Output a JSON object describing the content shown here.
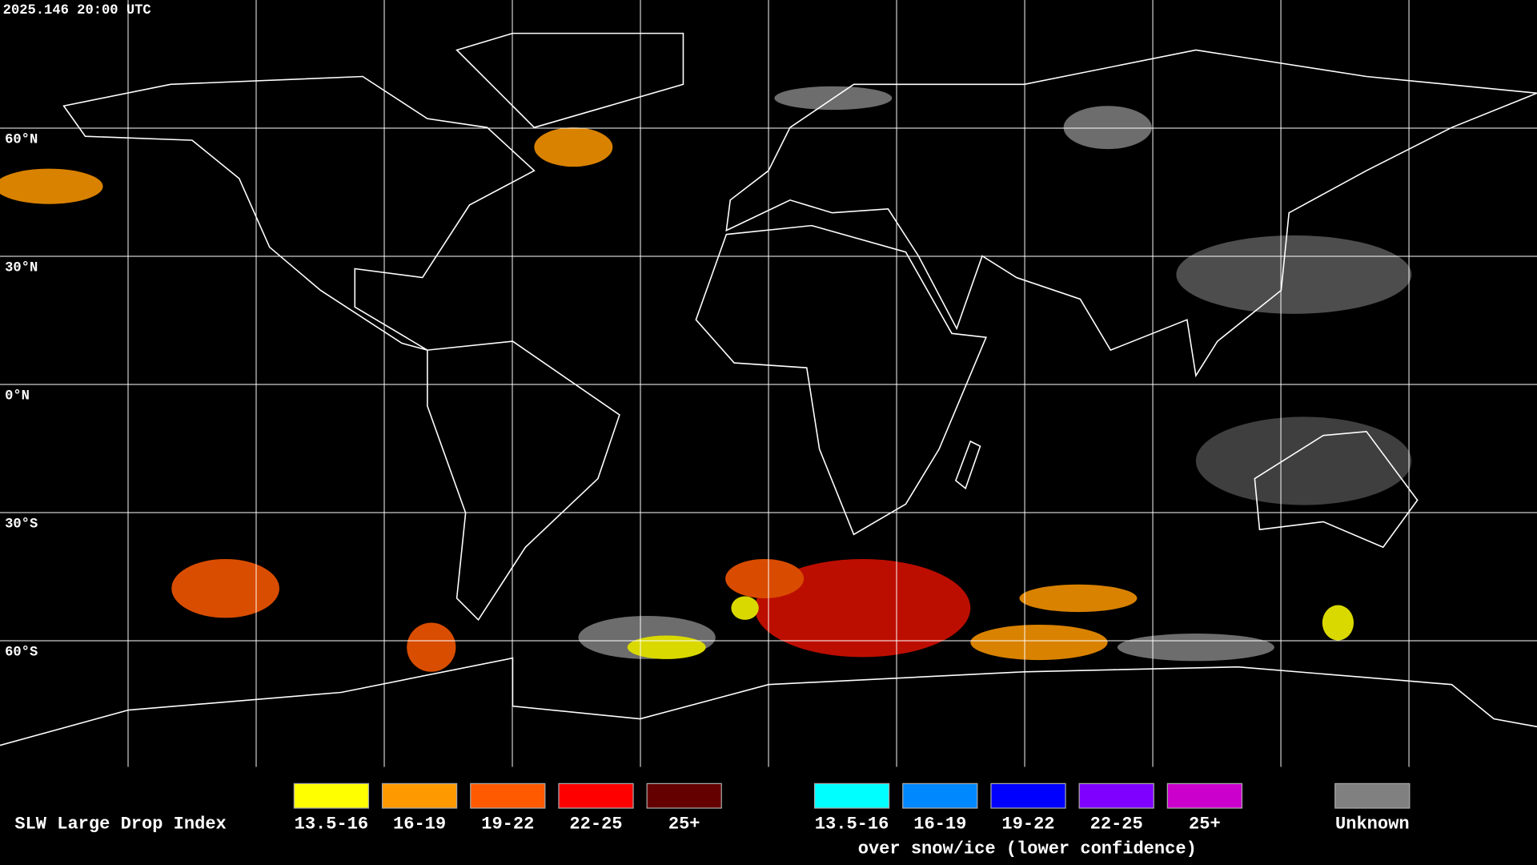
{
  "header": {
    "title": "2025.146 20:00 UTC"
  },
  "map": {
    "lat_labels": [
      "60°N",
      "30°N",
      "0°N",
      "30°S",
      "60°S"
    ]
  },
  "legend": {
    "title": "SLW Large Drop Index",
    "items": [
      {
        "label": "13.5-16",
        "color": "#ffff00"
      },
      {
        "label": "16-19",
        "color": "#ff9900"
      },
      {
        "label": "19-22",
        "color": "#ff5a00"
      },
      {
        "label": "22-25",
        "color": "#ff0000"
      },
      {
        "label": "25+",
        "color": "#650000"
      }
    ],
    "snow_items": [
      {
        "label": "13.5-16",
        "color": "#00ffff"
      },
      {
        "label": "16-19",
        "color": "#0088ff"
      },
      {
        "label": "19-22",
        "color": "#0000ff"
      },
      {
        "label": "22-25",
        "color": "#7f00ff"
      },
      {
        "label": "25+",
        "color": "#cc00cc"
      }
    ],
    "snow_note": "over snow/ice (lower confidence)",
    "unknown": {
      "label": "Unknown",
      "color": "#808080"
    }
  }
}
